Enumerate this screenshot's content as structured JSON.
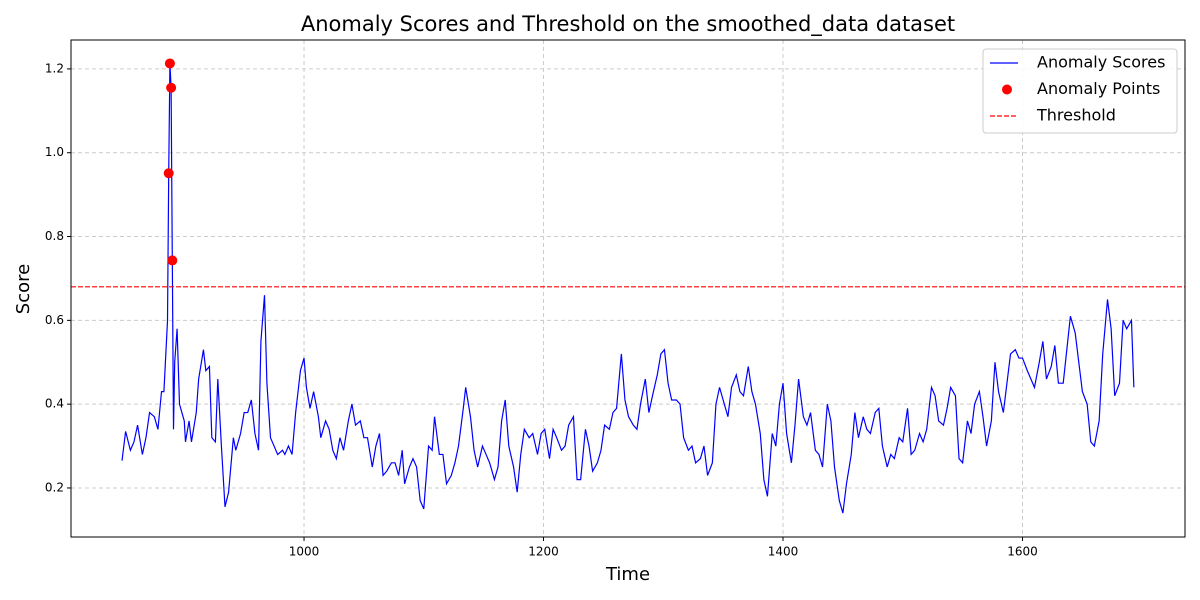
{
  "chart_data": {
    "type": "line",
    "title": "Anomaly Scores and Threshold on the smoothed_data dataset",
    "x_label": "Time",
    "y_label": "Score",
    "xlim": [
      805.4,
      1735.7
    ],
    "ylim": [
      0.083,
      1.269
    ],
    "xticks": [
      1000,
      1200,
      1400,
      1600
    ],
    "yticks": [
      0.2,
      0.4,
      0.6,
      0.8,
      {
        "value": 1,
        "label": "1.0"
      },
      1.2
    ],
    "grid": true,
    "legend": "upper right",
    "series": [
      {
        "name": "Anomaly Scores",
        "type": "line",
        "color": "#0000ff",
        "x": [
          848,
          851,
          855,
          858,
          861,
          865,
          868,
          871,
          875,
          878,
          881,
          883,
          886,
          887,
          888,
          889,
          890,
          891,
          892,
          894,
          896,
          900,
          901,
          904,
          906,
          910,
          912,
          916,
          918,
          921,
          923,
          926,
          928,
          931,
          934,
          937,
          941,
          943,
          947,
          950,
          953,
          956,
          959,
          962,
          964,
          967,
          969,
          972,
          975,
          978,
          982,
          984,
          987,
          990,
          993,
          997,
          1000,
          1002,
          1005,
          1008,
          1012,
          1014,
          1018,
          1021,
          1024,
          1027,
          1030,
          1033,
          1037,
          1040,
          1043,
          1047,
          1050,
          1053,
          1057,
          1060,
          1063,
          1066,
          1069,
          1073,
          1076,
          1079,
          1082,
          1084,
          1088,
          1091,
          1094,
          1097,
          1100,
          1104,
          1107,
          1109,
          1113,
          1116,
          1119,
          1123,
          1126,
          1129,
          1133,
          1135,
          1139,
          1142,
          1145,
          1149,
          1152,
          1155,
          1159,
          1162,
          1165,
          1168,
          1171,
          1175,
          1178,
          1181,
          1184,
          1188,
          1191,
          1195,
          1198,
          1201,
          1205,
          1208,
          1211,
          1215,
          1218,
          1221,
          1225,
          1228,
          1231,
          1235,
          1238,
          1241,
          1245,
          1248,
          1251,
          1255,
          1258,
          1261,
          1265,
          1268,
          1271,
          1275,
          1278,
          1281,
          1285,
          1288,
          1291,
          1295,
          1298,
          1301,
          1304,
          1307,
          1311,
          1314,
          1317,
          1321,
          1324,
          1327,
          1331,
          1334,
          1337,
          1341,
          1344,
          1347,
          1351,
          1354,
          1357,
          1361,
          1364,
          1367,
          1371,
          1374,
          1377,
          1381,
          1384,
          1387,
          1391,
          1394,
          1397,
          1400,
          1403,
          1407,
          1410,
          1413,
          1417,
          1420,
          1423,
          1427,
          1430,
          1433,
          1437,
          1440,
          1443,
          1447,
          1450,
          1453,
          1457,
          1460,
          1463,
          1467,
          1470,
          1473,
          1477,
          1480,
          1483,
          1487,
          1490,
          1493,
          1497,
          1500,
          1504,
          1507,
          1510,
          1514,
          1517,
          1520,
          1524,
          1527,
          1530,
          1534,
          1537,
          1540,
          1544,
          1547,
          1550,
          1554,
          1557,
          1560,
          1564,
          1567,
          1570,
          1574,
          1577,
          1580,
          1584,
          1587,
          1590,
          1594,
          1597,
          1600,
          1604,
          1607,
          1610,
          1614,
          1617,
          1620,
          1624,
          1627,
          1630,
          1634,
          1637,
          1640,
          1644,
          1647,
          1650,
          1654,
          1657,
          1660,
          1664,
          1667,
          1671,
          1674,
          1677,
          1681,
          1684,
          1687,
          1691,
          1693
        ],
        "values": [
          0.265,
          0.335,
          0.29,
          0.31,
          0.35,
          0.28,
          0.32,
          0.38,
          0.37,
          0.34,
          0.43,
          0.43,
          0.6,
          0.951,
          1.213,
          1.155,
          0.743,
          0.34,
          0.5,
          0.58,
          0.4,
          0.36,
          0.31,
          0.36,
          0.31,
          0.38,
          0.46,
          0.53,
          0.48,
          0.49,
          0.32,
          0.31,
          0.46,
          0.3,
          0.155,
          0.19,
          0.32,
          0.29,
          0.33,
          0.38,
          0.38,
          0.41,
          0.33,
          0.29,
          0.55,
          0.66,
          0.45,
          0.32,
          0.3,
          0.28,
          0.29,
          0.28,
          0.3,
          0.28,
          0.38,
          0.48,
          0.51,
          0.44,
          0.39,
          0.43,
          0.37,
          0.32,
          0.36,
          0.34,
          0.29,
          0.27,
          0.32,
          0.29,
          0.36,
          0.4,
          0.35,
          0.36,
          0.32,
          0.32,
          0.25,
          0.3,
          0.33,
          0.23,
          0.24,
          0.26,
          0.26,
          0.23,
          0.29,
          0.21,
          0.25,
          0.27,
          0.25,
          0.17,
          0.15,
          0.3,
          0.29,
          0.37,
          0.28,
          0.28,
          0.21,
          0.23,
          0.26,
          0.3,
          0.39,
          0.44,
          0.37,
          0.29,
          0.25,
          0.3,
          0.28,
          0.26,
          0.22,
          0.25,
          0.36,
          0.41,
          0.3,
          0.25,
          0.19,
          0.28,
          0.34,
          0.32,
          0.33,
          0.28,
          0.33,
          0.34,
          0.27,
          0.34,
          0.32,
          0.29,
          0.3,
          0.35,
          0.37,
          0.22,
          0.22,
          0.34,
          0.3,
          0.24,
          0.26,
          0.29,
          0.35,
          0.34,
          0.38,
          0.39,
          0.52,
          0.41,
          0.37,
          0.35,
          0.34,
          0.4,
          0.46,
          0.38,
          0.42,
          0.47,
          0.52,
          0.53,
          0.45,
          0.41,
          0.41,
          0.4,
          0.32,
          0.29,
          0.3,
          0.26,
          0.27,
          0.3,
          0.23,
          0.26,
          0.4,
          0.44,
          0.4,
          0.37,
          0.44,
          0.47,
          0.43,
          0.42,
          0.49,
          0.43,
          0.4,
          0.33,
          0.22,
          0.18,
          0.33,
          0.3,
          0.4,
          0.45,
          0.33,
          0.26,
          0.35,
          0.46,
          0.37,
          0.35,
          0.38,
          0.29,
          0.28,
          0.25,
          0.4,
          0.36,
          0.25,
          0.17,
          0.14,
          0.21,
          0.28,
          0.38,
          0.32,
          0.37,
          0.34,
          0.33,
          0.38,
          0.39,
          0.3,
          0.25,
          0.28,
          0.27,
          0.32,
          0.31,
          0.39,
          0.28,
          0.29,
          0.33,
          0.31,
          0.34,
          0.44,
          0.42,
          0.36,
          0.35,
          0.39,
          0.44,
          0.42,
          0.27,
          0.26,
          0.36,
          0.33,
          0.4,
          0.43,
          0.37,
          0.3,
          0.36,
          0.5,
          0.43,
          0.38,
          0.45,
          0.52,
          0.53,
          0.51,
          0.51,
          0.48,
          0.46,
          0.44,
          0.5,
          0.55,
          0.46,
          0.49,
          0.54,
          0.45,
          0.45,
          0.53,
          0.61,
          0.57,
          0.5,
          0.43,
          0.4,
          0.31,
          0.3,
          0.36,
          0.52,
          0.65,
          0.58,
          0.42,
          0.45,
          0.6,
          0.58,
          0.6,
          0.44
        ]
      },
      {
        "name": "Anomaly Points",
        "type": "scatter",
        "color": "#ff0000",
        "x": [
          887,
          888,
          889,
          890
        ],
        "values": [
          0.951,
          1.213,
          1.155,
          0.743
        ]
      }
    ],
    "threshold": {
      "name": "Threshold",
      "value": 0.68,
      "color": "#ff0000"
    }
  }
}
